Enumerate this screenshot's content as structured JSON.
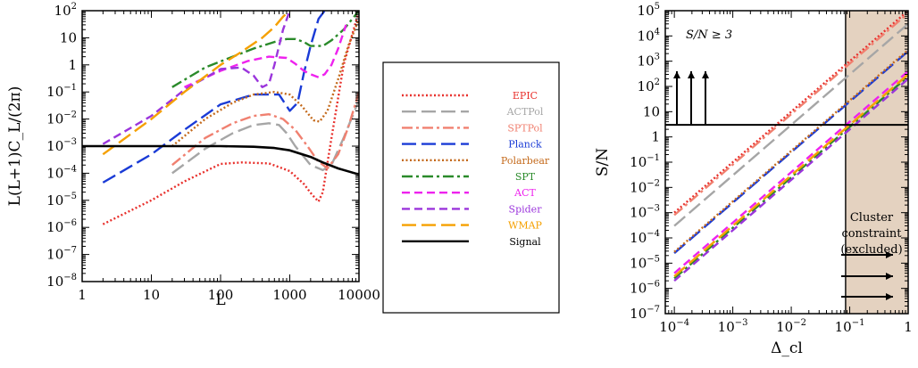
{
  "chart_data": [
    {
      "type": "line",
      "xlabel": "L",
      "ylabel": "L(L+1)C_L/(2π)",
      "xscale": "log",
      "yscale": "log",
      "xlim": [
        1,
        10000
      ],
      "ylim": [
        1e-08,
        100
      ],
      "xticks": [
        "1",
        "10",
        "100",
        "1000",
        "10000"
      ],
      "yticks": [
        "10^-8",
        "10^-7",
        "10^-6",
        "10^-5",
        "10^-4",
        "10^-3",
        "10^-2",
        "10^-1",
        "1",
        "10",
        "10^2"
      ],
      "grid": false,
      "series": [
        {
          "name": "EPIC",
          "color": "#e8302c",
          "dash": "dotted",
          "x": [
            2,
            10,
            30,
            100,
            200,
            500,
            1000,
            1600,
            2100,
            2600,
            3000,
            4000,
            6000,
            10000
          ],
          "y": [
            1.3e-06,
            1e-05,
            5e-05,
            0.00022,
            0.00025,
            0.00023,
            0.00012,
            4e-05,
            1.6e-05,
            9e-06,
            2e-05,
            0.002,
            1,
            100
          ]
        },
        {
          "name": "ACTPol",
          "color": "#a6a6a6",
          "dash": "longdash",
          "x": [
            20,
            60,
            150,
            300,
            500,
            700,
            900,
            1200,
            2000,
            3000,
            4000,
            6000,
            10000
          ],
          "y": [
            0.0001,
            0.0008,
            0.003,
            0.006,
            0.007,
            0.006,
            0.003,
            0.001,
            0.0002,
            0.00013,
            0.0002,
            0.002,
            0.05
          ]
        },
        {
          "name": "SPTPol",
          "color": "#f08070",
          "dash": "dashdot",
          "x": [
            20,
            60,
            150,
            300,
            500,
            800,
            1200,
            1800,
            2500,
            3500,
            5000,
            7000,
            10000
          ],
          "y": [
            0.0002,
            0.002,
            0.007,
            0.013,
            0.015,
            0.01,
            0.004,
            0.001,
            0.0003,
            0.00015,
            0.0005,
            0.005,
            0.1
          ]
        },
        {
          "name": "Planck",
          "color": "#1a3bd6",
          "dash": "longdash",
          "x": [
            2,
            10,
            30,
            100,
            300,
            700,
            1000,
            1300,
            1600,
            2000,
            2600,
            3200
          ],
          "y": [
            4.5e-05,
            0.0005,
            0.004,
            0.035,
            0.08,
            0.08,
            0.02,
            0.04,
            0.5,
            5,
            50,
            100
          ]
        },
        {
          "name": "Polarbear",
          "color": "#c46a1c",
          "dash": "dotted",
          "x": [
            20,
            60,
            150,
            300,
            600,
            1000,
            1500,
            2200,
            2700,
            3500,
            5000,
            7000,
            10000
          ],
          "y": [
            0.001,
            0.01,
            0.04,
            0.08,
            0.1,
            0.08,
            0.03,
            0.009,
            0.008,
            0.02,
            0.3,
            5,
            50
          ]
        },
        {
          "name": "SPT",
          "color": "#2a8a2a",
          "dash": "dashdot",
          "x": [
            20,
            60,
            150,
            300,
            600,
            900,
            1200,
            1600,
            2000,
            3000,
            4000,
            6000,
            10000
          ],
          "y": [
            0.15,
            0.8,
            2,
            4,
            7,
            9,
            9,
            7,
            5,
            5,
            8,
            20,
            100
          ]
        },
        {
          "name": "ACT",
          "color": "#ee22ee",
          "dash": "dashed",
          "x": [
            30,
            100,
            250,
            500,
            900,
            1200,
            1600,
            2000,
            2600,
            3200,
            4000,
            5000,
            6500
          ],
          "y": [
            0.15,
            0.6,
            1.4,
            2,
            1.8,
            1.1,
            0.6,
            0.45,
            0.35,
            0.45,
            1,
            4,
            30
          ]
        },
        {
          "name": "Spider",
          "color": "#9b35dc",
          "dash": "dashed",
          "x": [
            2,
            10,
            30,
            100,
            200,
            300,
            400,
            500,
            600,
            800,
            1000
          ],
          "y": [
            0.0012,
            0.013,
            0.12,
            0.7,
            0.8,
            0.4,
            0.15,
            0.2,
            1,
            20,
            100
          ]
        },
        {
          "name": "WMAP",
          "color": "#f5a000",
          "dash": "longdash",
          "x": [
            2,
            10,
            30,
            100,
            200,
            400,
            600,
            800,
            1000
          ],
          "y": [
            0.0005,
            0.01,
            0.1,
            1,
            3,
            10,
            25,
            60,
            100
          ]
        },
        {
          "name": "Signal",
          "color": "#000000",
          "dash": "solid",
          "x": [
            1,
            30,
            100,
            300,
            600,
            1000,
            2000,
            3000,
            5000,
            10000
          ],
          "y": [
            0.001,
            0.001,
            0.001,
            0.00095,
            0.00085,
            0.0007,
            0.0004,
            0.00025,
            0.00015,
            9e-05
          ]
        }
      ]
    },
    {
      "type": "line",
      "xlabel": "Δ_cl",
      "ylabel": "S/N",
      "xscale": "log",
      "yscale": "log",
      "xlim": [
        7e-05,
        1
      ],
      "ylim": [
        1e-07,
        100000.0
      ],
      "xticks": [
        "10^-4",
        "10^-3",
        "10^-2",
        "10^-1",
        "1"
      ],
      "yticks": [
        "10^-7",
        "10^-6",
        "10^-5",
        "10^-4",
        "10^-3",
        "10^-2",
        "10^-1",
        "1",
        "10",
        "10^2",
        "10^3",
        "10^4",
        "10^5"
      ],
      "grid": false,
      "threshold": 3,
      "excluded_region": [
        0.085,
        1
      ],
      "annotations": {
        "threshold_label": "S/N ≥ 3",
        "region_label": [
          "Cluster",
          "constraint",
          "(excluded)"
        ]
      },
      "series": [
        {
          "name": "EPIC",
          "color": "#e8302c",
          "dash": "dotted",
          "x": [
            0.0001,
            1
          ],
          "y": [
            0.001,
            100000.0
          ]
        },
        {
          "name": "ACTPol",
          "color": "#a6a6a6",
          "dash": "longdash",
          "x": [
            0.0001,
            1
          ],
          "y": [
            0.0003,
            30000.0
          ]
        },
        {
          "name": "SPTPol",
          "color": "#f08070",
          "dash": "dashdot",
          "x": [
            0.0001,
            1
          ],
          "y": [
            0.0008,
            80000.0
          ]
        },
        {
          "name": "Planck",
          "color": "#1a3bd6",
          "dash": "longdash",
          "x": [
            0.0001,
            1
          ],
          "y": [
            2.5e-05,
            2500
          ]
        },
        {
          "name": "Polarbear",
          "color": "#c46a1c",
          "dash": "dotted",
          "x": [
            0.0001,
            1
          ],
          "y": [
            2.8e-05,
            2800
          ]
        },
        {
          "name": "SPT",
          "color": "#2a8a2a",
          "dash": "dashdot",
          "x": [
            0.0001,
            1
          ],
          "y": [
            2.5e-06,
            250
          ]
        },
        {
          "name": "ACT",
          "color": "#ee22ee",
          "dash": "dashed",
          "x": [
            0.0001,
            1
          ],
          "y": [
            4e-06,
            400
          ]
        },
        {
          "name": "Spider",
          "color": "#9b35dc",
          "dash": "dashed",
          "x": [
            0.0001,
            1
          ],
          "y": [
            2e-06,
            200
          ]
        },
        {
          "name": "WMAP",
          "color": "#f5a000",
          "dash": "longdash",
          "x": [
            0.0001,
            1
          ],
          "y": [
            3e-06,
            300
          ]
        }
      ]
    }
  ],
  "legend": {
    "placement": "center",
    "entries": [
      {
        "label": "EPIC",
        "color": "#e8302c",
        "dash": "dotted"
      },
      {
        "label": "ACTPol",
        "color": "#a6a6a6",
        "dash": "longdash"
      },
      {
        "label": "SPTPol",
        "color": "#f08070",
        "dash": "dashdot"
      },
      {
        "label": "Planck",
        "color": "#1a3bd6",
        "dash": "longdash"
      },
      {
        "label": "Polarbear",
        "color": "#c46a1c",
        "dash": "dotted"
      },
      {
        "label": "SPT",
        "color": "#2a8a2a",
        "dash": "dashdot"
      },
      {
        "label": "ACT",
        "color": "#ee22ee",
        "dash": "dashed"
      },
      {
        "label": "Spider",
        "color": "#9b35dc",
        "dash": "dashed"
      },
      {
        "label": "WMAP",
        "color": "#f5a000",
        "dash": "longdash"
      },
      {
        "label": "Signal",
        "color": "#000000",
        "dash": "solid"
      }
    ]
  }
}
